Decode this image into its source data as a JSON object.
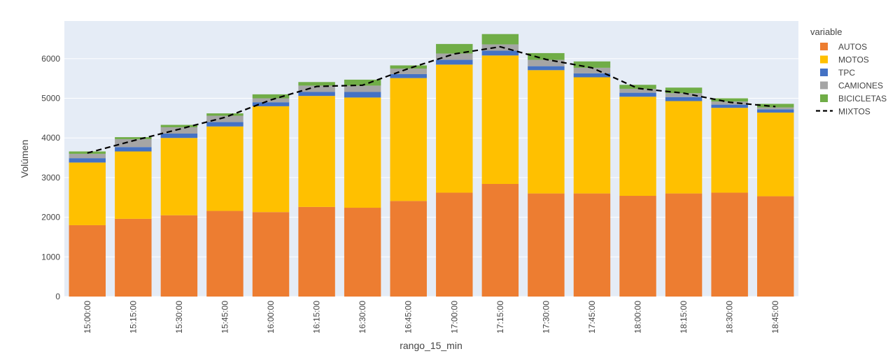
{
  "chart_data": {
    "type": "bar",
    "stacked": true,
    "xlabel": "rango_15_min",
    "ylabel": "Volúmen",
    "ylim": [
      0,
      6950
    ],
    "yticks": [
      0,
      1000,
      2000,
      3000,
      4000,
      5000,
      6000
    ],
    "grid": true,
    "legend_title": "variable",
    "legend_position": "right",
    "categories": [
      "15:00:00",
      "15:15:00",
      "15:30:00",
      "15:45:00",
      "16:00:00",
      "16:15:00",
      "16:30:00",
      "16:45:00",
      "17:00:00",
      "17:15:00",
      "17:30:00",
      "17:45:00",
      "18:00:00",
      "18:15:00",
      "18:30:00",
      "18:45:00"
    ],
    "series": [
      {
        "name": "AUTOS",
        "color": "#ED7D31",
        "values": [
          1800,
          1960,
          2050,
          2160,
          2130,
          2260,
          2240,
          2410,
          2620,
          2840,
          2600,
          2600,
          2540,
          2600,
          2620,
          2530
        ]
      },
      {
        "name": "MOTOS",
        "color": "#FFC000",
        "values": [
          1580,
          1700,
          1950,
          2130,
          2670,
          2800,
          2780,
          3100,
          3230,
          3240,
          3110,
          2930,
          2500,
          2330,
          2140,
          2110
        ]
      },
      {
        "name": "TPC",
        "color": "#4472C4",
        "values": [
          110,
          110,
          110,
          110,
          100,
          100,
          140,
          100,
          120,
          120,
          100,
          100,
          100,
          100,
          80,
          80
        ]
      },
      {
        "name": "CAMIONES",
        "color": "#A5A5A5",
        "values": [
          110,
          200,
          160,
          160,
          100,
          160,
          160,
          140,
          160,
          160,
          160,
          140,
          100,
          100,
          80,
          50
        ]
      },
      {
        "name": "BICICLETAS",
        "color": "#70AD47",
        "values": [
          60,
          50,
          60,
          60,
          100,
          90,
          150,
          80,
          240,
          260,
          170,
          160,
          100,
          140,
          80,
          90
        ]
      }
    ],
    "line_series": {
      "name": "MIXTOS",
      "style": "dashed",
      "color": "#000000",
      "values": [
        3620,
        3930,
        4220,
        4520,
        4960,
        5300,
        5330,
        5750,
        6120,
        6300,
        5980,
        5770,
        5250,
        5130,
        4900,
        4790
      ]
    }
  }
}
